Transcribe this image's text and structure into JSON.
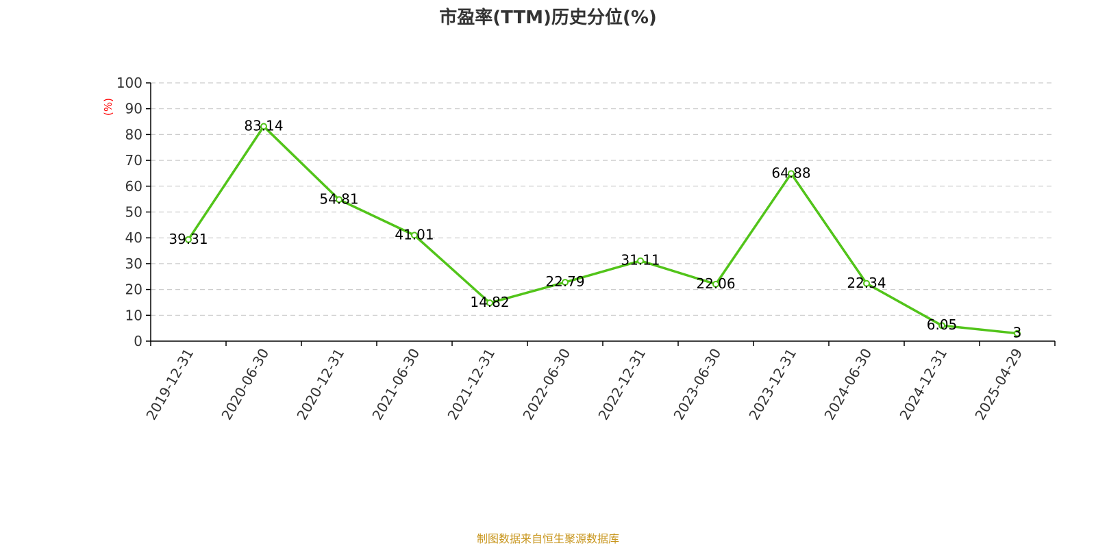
{
  "chart_data": {
    "type": "line",
    "title": "市盈率(TTM)历史分位(%)",
    "y_unit": "(%)",
    "x": [
      "2019-12-31",
      "2020-06-30",
      "2020-12-31",
      "2021-06-30",
      "2021-12-31",
      "2022-06-30",
      "2022-12-31",
      "2023-06-30",
      "2023-12-31",
      "2024-06-30",
      "2024-12-31",
      "2025-04-29"
    ],
    "series": [
      {
        "values": [
          39.31,
          83.14,
          54.81,
          41.01,
          14.82,
          22.79,
          31.11,
          22.06,
          64.88,
          22.34,
          6.05,
          3
        ],
        "labels": [
          "39.31",
          "83.14",
          "54.81",
          "41.01",
          "14.82",
          "22.79",
          "31.11",
          "22.06",
          "64.88",
          "22.34",
          "6.05",
          "3"
        ]
      }
    ],
    "ylim": [
      0,
      100
    ],
    "y_ticks": [
      "0",
      "10",
      "20",
      "30",
      "40",
      "50",
      "60",
      "70",
      "80",
      "90",
      "100"
    ],
    "grid": true,
    "legend": "none"
  },
  "footer": {
    "source": "制图数据来自恒生聚源数据库"
  },
  "colors": {
    "line": "#52c41a",
    "unit": "#ff0000",
    "footer": "#c8961e",
    "title": "#333333"
  }
}
